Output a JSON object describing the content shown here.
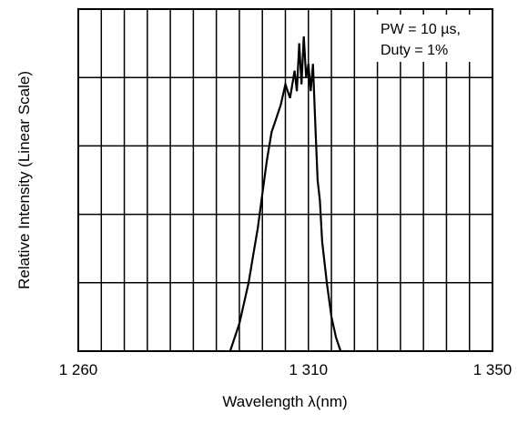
{
  "chart_data": {
    "type": "line",
    "xlabel": "Wavelength λ(nm)",
    "ylabel": "Relative Intensity (Linear Scale)",
    "xlim": [
      1260,
      1350
    ],
    "ylim": [
      0,
      5
    ],
    "y_scale": "linear",
    "x_ticks": [
      1260,
      1310,
      1350
    ],
    "x_tick_labels": [
      "1 260",
      "1 310",
      "1 350"
    ],
    "grid": true,
    "annotation": [
      "PW = 10 µs,",
      "Duty = 1%"
    ],
    "series": [
      {
        "x": [
          1293,
          1295,
          1297,
          1298,
          1299,
          1300,
          1301,
          1302,
          1303,
          1304,
          1305,
          1306,
          1307,
          1307.5,
          1308,
          1308.5,
          1309,
          1309.5,
          1310,
          1310.5,
          1311,
          1311.5,
          1312,
          1312.5,
          1313,
          1314,
          1315,
          1316,
          1317
        ],
        "y": [
          0,
          0.4,
          1.0,
          1.4,
          1.8,
          2.3,
          2.8,
          3.2,
          3.4,
          3.6,
          3.9,
          3.7,
          4.1,
          3.8,
          4.5,
          3.9,
          4.6,
          4.0,
          4.2,
          3.8,
          4.2,
          3.3,
          2.5,
          2.2,
          1.6,
          1.0,
          0.5,
          0.2,
          0
        ]
      }
    ]
  }
}
